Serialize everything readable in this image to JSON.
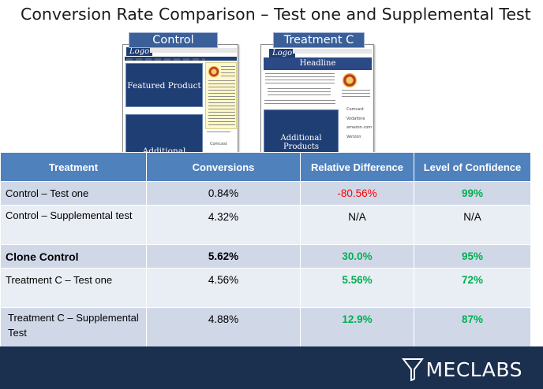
{
  "title": "Conversion Rate Comparison – Test one and Supplemental Test",
  "thumbnails": {
    "control": {
      "label": "Control",
      "logo": "Logo",
      "featured": "Featured Product",
      "additional": "Additional",
      "brands": [
        "Comcast"
      ]
    },
    "treatment": {
      "label": "Treatment C",
      "logo": "Logo",
      "headline": "Headline",
      "additional": "Additional Products",
      "brands": [
        "Comcast",
        "Vodafone",
        "amazon.com",
        "Verizon"
      ]
    }
  },
  "table": {
    "headers": [
      "Treatment",
      "Conversions",
      "Relative Difference",
      "Level of Confidence"
    ],
    "rows": [
      {
        "treatment": "Control – Test one",
        "conversions": "0.84%",
        "relative": "-80.56%",
        "confidence": "99%"
      },
      {
        "treatment": "Control – Supplemental test",
        "conversions": "4.32%",
        "relative": "N/A",
        "confidence": "N/A"
      },
      {
        "treatment": "Clone Control",
        "conversions": "5.62%",
        "relative": "30.0%",
        "confidence": "95%"
      },
      {
        "treatment": "Treatment C – Test one",
        "conversions": "4.56%",
        "relative": "5.56%",
        "confidence": "72%"
      },
      {
        "treatment": "Treatment C – Supplemental Test",
        "conversions": "4.88%",
        "relative": "12.9%",
        "confidence": "87%"
      }
    ]
  },
  "footer": {
    "brand": "MECLABS"
  },
  "colors": {
    "header_blue": "#4f81bd",
    "row_odd": "#d0d8e8",
    "row_even": "#e9edf4",
    "positive": "#00b050",
    "negative": "#ff0000",
    "footer": "#1b2f4e"
  }
}
